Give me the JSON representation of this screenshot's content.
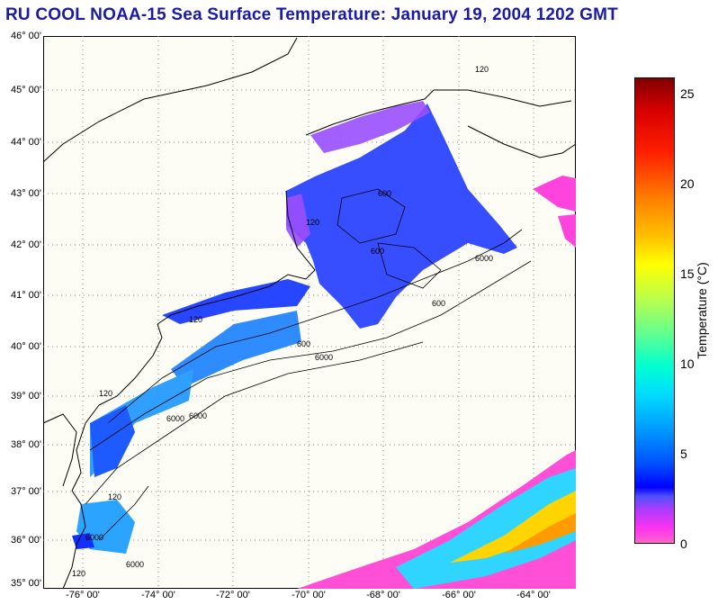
{
  "title": "RU COOL  NOAA-15  Sea Surface Temperature:  January 19, 2004 1202 GMT",
  "lat_labels": [
    "46° 00'",
    "45° 00'",
    "44° 00'",
    "43° 00'",
    "42° 00'",
    "41° 00'",
    "40° 00'",
    "39° 00'",
    "38° 00'",
    "37° 00'",
    "36° 00'",
    "35° 00'"
  ],
  "lon_labels": [
    "-76° 00'",
    "-74° 00'",
    "-72° 00'",
    "-70° 00'",
    "-68° 00'",
    "-66° 00'",
    "-64° 00'"
  ],
  "colorbar": {
    "label": "Temperature (°C)",
    "ticks": [
      "25",
      "20",
      "15",
      "10",
      "5",
      "0"
    ],
    "min": 0,
    "max": 26
  },
  "contour_labels": [
    "120",
    "600",
    "6000",
    "120",
    "600",
    "6000",
    "600",
    "120",
    "6000",
    "600",
    "120",
    "6000",
    "6000",
    "120",
    "6000",
    "120"
  ],
  "colors": {
    "title": "#1a1aa6",
    "land": "#fdfdf6"
  }
}
